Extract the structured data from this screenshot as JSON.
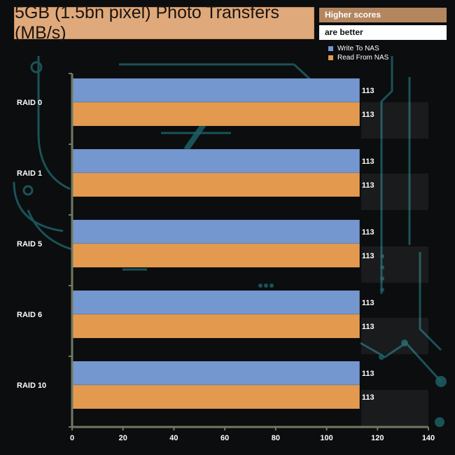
{
  "chart_data": {
    "type": "bar",
    "orientation": "horizontal",
    "title": "5GB (1.5bn pixel) Photo Transfers (MB/s)",
    "categories": [
      "RAID 0",
      "RAID 1",
      "RAID 5",
      "RAID 6",
      "RAID 10"
    ],
    "series": [
      {
        "name": "Write To NAS",
        "values": [
          113,
          113,
          113,
          113,
          113
        ],
        "color": "#7597cf"
      },
      {
        "name": "Read From NAS",
        "values": [
          113,
          113,
          113,
          113,
          113
        ],
        "color": "#e39a4f"
      }
    ],
    "xlim": [
      0,
      140
    ],
    "xticks": [
      "0",
      "20",
      "40",
      "60",
      "80",
      "100",
      "120",
      "140"
    ],
    "legend_position": "top-right",
    "grid": false
  },
  "note": {
    "line1": "Higher scores",
    "line2": "are better"
  },
  "colors": {
    "axis": "#6f7a63",
    "title_bg": "#e0a97b",
    "background": "#0b0d0e",
    "circuit": "#1e5f66"
  }
}
